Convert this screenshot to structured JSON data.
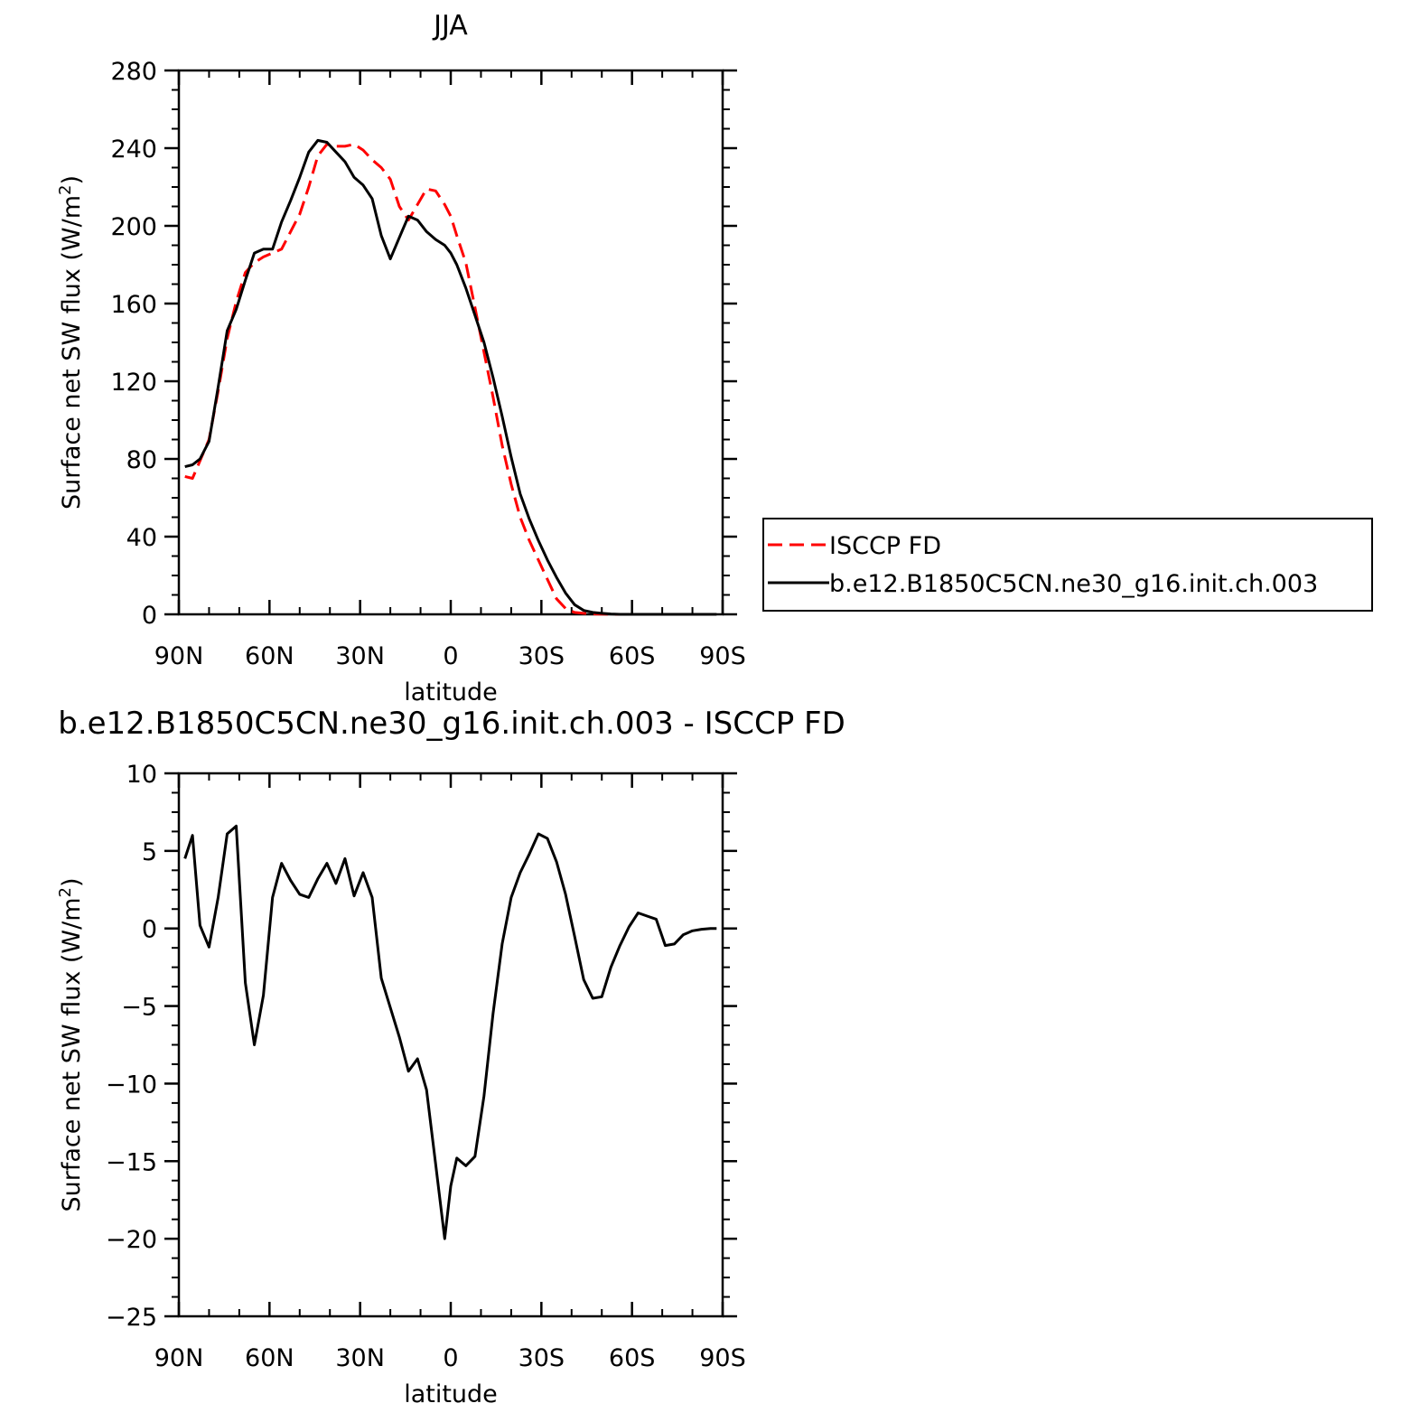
{
  "chart_data": [
    {
      "type": "line",
      "title": "JJA",
      "xlabel": "latitude",
      "ylabel_main": "Surface net SW flux (W/m",
      "ylabel_sup": "2",
      "ylabel_tail": ")",
      "xlim": [
        90,
        -90
      ],
      "ylim": [
        0,
        280
      ],
      "xticks": [
        {
          "value": 90,
          "label": "90N"
        },
        {
          "value": 60,
          "label": "60N"
        },
        {
          "value": 30,
          "label": "30N"
        },
        {
          "value": 0,
          "label": "0"
        },
        {
          "value": -30,
          "label": "30S"
        },
        {
          "value": -60,
          "label": "60S"
        },
        {
          "value": -90,
          "label": "90S"
        }
      ],
      "yticks": [
        0,
        40,
        80,
        120,
        160,
        200,
        240,
        280
      ],
      "legend_position": "right",
      "series": [
        {
          "name": "ISCCP FD",
          "color": "#ff0000",
          "dash": "dashed",
          "x": [
            88,
            85.5,
            83,
            80,
            77,
            74,
            71,
            68,
            65,
            62,
            59,
            56,
            53,
            50,
            47,
            44,
            41,
            38,
            35,
            32,
            29,
            26,
            23,
            20,
            17,
            14,
            11,
            8,
            5,
            2,
            0,
            -2,
            -5,
            -8,
            -11,
            -14,
            -17,
            -20,
            -23,
            -26,
            -29,
            -32,
            -35,
            -38,
            -41,
            -44,
            -47,
            -50,
            -53,
            -56,
            -59,
            -62,
            -65,
            -68,
            -71,
            -74,
            -77,
            -80,
            -83,
            -86,
            -88
          ],
          "y": [
            71,
            70,
            79,
            90,
            115,
            142,
            161,
            176,
            181,
            184,
            186,
            188,
            197,
            206,
            220,
            236,
            242,
            241,
            241,
            242,
            239,
            234,
            230,
            224,
            210,
            203,
            211,
            219,
            218,
            211,
            205,
            195,
            181,
            158,
            135,
            112,
            87,
            67,
            50,
            38,
            28,
            18,
            8,
            3,
            1,
            0.5,
            0.2,
            0.1,
            0,
            0,
            0,
            0,
            0,
            0,
            0,
            0,
            0,
            0,
            0,
            0,
            0
          ]
        },
        {
          "name": "b.e12.B1850C5CN.ne30_g16.init.ch.003",
          "color": "#000000",
          "dash": "solid",
          "x": [
            88,
            85.5,
            83,
            80,
            77,
            74,
            71,
            68,
            65,
            62,
            59,
            56,
            53,
            50,
            47,
            44,
            41,
            38,
            35,
            32,
            29,
            26,
            23,
            20,
            17,
            14,
            11,
            8,
            5,
            2,
            0,
            -2,
            -5,
            -8,
            -11,
            -14,
            -17,
            -20,
            -23,
            -26,
            -29,
            -32,
            -35,
            -38,
            -41,
            -44,
            -47,
            -50,
            -53,
            -56,
            -59,
            -62,
            -65,
            -68,
            -71,
            -74,
            -77,
            -80,
            -83,
            -86,
            -88
          ],
          "y": [
            76,
            77,
            80,
            89,
            117,
            146,
            157,
            172,
            186,
            188,
            188,
            202,
            213,
            225,
            238,
            244,
            243,
            238,
            233,
            225,
            221,
            214,
            195,
            183,
            194,
            205,
            203,
            197,
            193,
            190,
            186,
            180,
            168,
            154,
            140,
            122,
            102,
            81,
            62,
            49,
            38,
            28,
            19,
            11,
            5,
            2,
            1,
            0.5,
            0.2,
            0,
            0,
            0,
            0,
            0,
            0,
            0,
            0,
            0,
            0,
            0,
            0
          ]
        }
      ]
    },
    {
      "type": "line",
      "title": "b.e12.B1850C5CN.ne30_g16.init.ch.003 - ISCCP FD",
      "xlabel": "latitude",
      "ylabel_main": "Surface net SW flux (W/m",
      "ylabel_sup": "2",
      "ylabel_tail": ")",
      "xlim": [
        90,
        -90
      ],
      "ylim": [
        -25,
        10
      ],
      "xticks": [
        {
          "value": 90,
          "label": "90N"
        },
        {
          "value": 60,
          "label": "60N"
        },
        {
          "value": 30,
          "label": "30N"
        },
        {
          "value": 0,
          "label": "0"
        },
        {
          "value": -30,
          "label": "30S"
        },
        {
          "value": -60,
          "label": "60S"
        },
        {
          "value": -90,
          "label": "90S"
        }
      ],
      "yticks": [
        10,
        5,
        0,
        -5,
        -10,
        -15,
        -20,
        -25
      ],
      "series": [
        {
          "color": "#000000",
          "dash": "solid",
          "x": [
            88,
            85.5,
            83,
            80,
            77,
            74,
            71,
            68,
            65,
            62,
            59,
            56,
            53,
            50,
            47,
            44,
            41,
            38,
            35,
            32,
            29,
            26,
            23,
            20,
            17,
            14,
            11,
            8,
            5,
            2,
            0,
            -2,
            -5,
            -8,
            -11,
            -14,
            -17,
            -20,
            -23,
            -26,
            -29,
            -32,
            -35,
            -38,
            -41,
            -44,
            -47,
            -50,
            -53,
            -56,
            -59,
            -62,
            -65,
            -68,
            -71,
            -74,
            -77,
            -80,
            -83,
            -86,
            -88
          ],
          "y": [
            4.5,
            6.0,
            0.2,
            -1.2,
            2.0,
            6.1,
            6.6,
            -3.5,
            -7.5,
            -4.3,
            2.0,
            4.2,
            3.1,
            2.2,
            2.0,
            3.2,
            4.2,
            2.9,
            4.5,
            2.1,
            3.6,
            2.0,
            -3.2,
            -5.1,
            -7.0,
            -9.2,
            -8.4,
            -10.4,
            -15.2,
            -20.0,
            -16.6,
            -14.8,
            -15.3,
            -14.7,
            -10.8,
            -5.5,
            -1.0,
            2.0,
            3.6,
            4.8,
            6.1,
            5.8,
            4.3,
            2.2,
            -0.5,
            -3.3,
            -4.5,
            -4.4,
            -2.5,
            -1.1,
            0.1,
            1.0,
            0.8,
            0.6,
            -1.1,
            -1.0,
            -0.4,
            -0.15,
            -0.05,
            0,
            0
          ]
        }
      ]
    }
  ]
}
